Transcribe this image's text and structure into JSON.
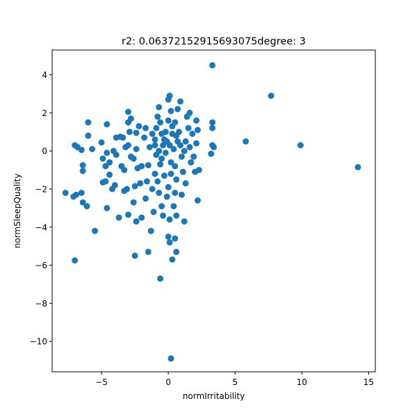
{
  "chart_data": {
    "type": "scatter",
    "title": "r2: 0.06372152915693075degree: 3",
    "xlabel": "normIrritability",
    "ylabel": "normSleepQuality",
    "xlim": [
      -8.7,
      15.5
    ],
    "ylim": [
      -11.6,
      5.3
    ],
    "xticks": [
      -5,
      0,
      5,
      10,
      15
    ],
    "yticks": [
      -10,
      -8,
      -6,
      -4,
      -2,
      0,
      2,
      4
    ],
    "xtick_labels": [
      "−5",
      "0",
      "5",
      "10",
      "15"
    ],
    "ytick_labels": [
      "−10",
      "−8",
      "−6",
      "−4",
      "−2",
      "0",
      "2",
      "4"
    ],
    "grid": false,
    "marker_color": "#1f77b4",
    "points": [
      [
        3.3,
        4.5
      ],
      [
        7.7,
        2.9
      ],
      [
        5.8,
        0.5
      ],
      [
        9.9,
        0.3
      ],
      [
        14.2,
        -0.85
      ],
      [
        0.2,
        -10.9
      ],
      [
        -0.6,
        -6.7
      ],
      [
        -7.0,
        -5.75
      ],
      [
        -5.5,
        -4.2
      ],
      [
        -7.7,
        -2.2
      ],
      [
        -7.1,
        -2.4
      ],
      [
        -6.9,
        -2.3
      ],
      [
        -6.5,
        -2.2
      ],
      [
        -6.4,
        -2.7
      ],
      [
        -6.1,
        -2.9
      ],
      [
        -6.0,
        1.5
      ],
      [
        -6.0,
        0.8
      ],
      [
        -5.7,
        0.1
      ],
      [
        -7.0,
        0.3
      ],
      [
        -6.8,
        0.2
      ],
      [
        -6.5,
        0.05
      ],
      [
        -6.4,
        -0.75
      ],
      [
        -6.4,
        -1.05
      ],
      [
        -5.0,
        0.45
      ],
      [
        -4.6,
        1.4
      ],
      [
        -4.6,
        -0.1
      ],
      [
        -4.4,
        -0.6
      ],
      [
        -4.9,
        -0.4
      ],
      [
        -4.7,
        -0.8
      ],
      [
        -4.9,
        -1.65
      ],
      [
        -4.7,
        -1.6
      ],
      [
        -4.4,
        -1.25
      ],
      [
        -4.2,
        -2.0
      ],
      [
        -4.6,
        -3.0
      ],
      [
        -4.0,
        -1.8
      ],
      [
        -4.1,
        0.0
      ],
      [
        -3.9,
        0.7
      ],
      [
        -3.9,
        -0.2
      ],
      [
        -3.5,
        -0.8
      ],
      [
        -3.3,
        -1.0
      ],
      [
        -3.7,
        -3.5
      ],
      [
        -3.3,
        -2.1
      ],
      [
        -3.1,
        -2.0
      ],
      [
        -3.0,
        -3.35
      ],
      [
        -2.9,
        1.0
      ],
      [
        -3.0,
        1.5
      ],
      [
        -3.0,
        2.05
      ],
      [
        -2.8,
        1.7
      ],
      [
        -3.6,
        0.75
      ],
      [
        -3.4,
        0.7
      ],
      [
        -3.2,
        0.2
      ],
      [
        -3.0,
        0.3
      ],
      [
        -2.8,
        -0.3
      ],
      [
        -2.6,
        -0.4
      ],
      [
        -2.4,
        0.1
      ],
      [
        -2.3,
        -0.9
      ],
      [
        -2.1,
        -1.7
      ],
      [
        -2.0,
        -0.8
      ],
      [
        -2.5,
        -1.85
      ],
      [
        -2.6,
        -2.7
      ],
      [
        -2.4,
        -3.7
      ],
      [
        -2.5,
        -5.5
      ],
      [
        -2.0,
        -3.5
      ],
      [
        -1.7,
        -2.5
      ],
      [
        -1.6,
        -1.6
      ],
      [
        -1.5,
        -0.75
      ],
      [
        -1.4,
        0.2
      ],
      [
        -1.8,
        0.7
      ],
      [
        -1.7,
        1.2
      ],
      [
        -2.2,
        1.3
      ],
      [
        -2.4,
        0.95
      ],
      [
        -1.2,
        -2.0
      ],
      [
        -1.1,
        -3.2
      ],
      [
        -1.3,
        -4.2
      ],
      [
        -1.5,
        -5.3
      ],
      [
        -1.0,
        -1.2
      ],
      [
        -1.0,
        0.6
      ],
      [
        -0.9,
        1.2
      ],
      [
        -0.7,
        2.3
      ],
      [
        -0.8,
        1.8
      ],
      [
        -0.6,
        1.5
      ],
      [
        -0.5,
        0.9
      ],
      [
        -0.4,
        0.3
      ],
      [
        -0.5,
        -0.4
      ],
      [
        -0.6,
        -0.7
      ],
      [
        -0.8,
        -1.6
      ],
      [
        -0.7,
        -2.2
      ],
      [
        -0.5,
        -2.9
      ],
      [
        -0.4,
        -3.4
      ],
      [
        -0.3,
        -1.3
      ],
      [
        -0.2,
        -0.1
      ],
      [
        -0.1,
        0.5
      ],
      [
        0.0,
        1.6
      ],
      [
        0.1,
        2.9
      ],
      [
        0.0,
        2.7
      ],
      [
        0.2,
        2.1
      ],
      [
        0.3,
        1.3
      ],
      [
        0.1,
        0.3
      ],
      [
        0.2,
        -0.6
      ],
      [
        0.0,
        -1.9
      ],
      [
        -0.1,
        -2.4
      ],
      [
        0.1,
        -3.6
      ],
      [
        0.0,
        -4.5
      ],
      [
        0.1,
        -4.8
      ],
      [
        0.3,
        -5.7
      ],
      [
        0.5,
        -4.6
      ],
      [
        0.6,
        -5.3
      ],
      [
        0.6,
        -3.4
      ],
      [
        0.4,
        -2.9
      ],
      [
        0.5,
        -2.2
      ],
      [
        0.6,
        -1.5
      ],
      [
        0.5,
        -0.8
      ],
      [
        0.4,
        0.1
      ],
      [
        0.6,
        0.8
      ],
      [
        0.5,
        1.5
      ],
      [
        0.7,
        2.2
      ],
      [
        0.9,
        2.6
      ],
      [
        0.8,
        1.0
      ],
      [
        0.9,
        0.3
      ],
      [
        1.0,
        -0.3
      ],
      [
        1.1,
        -1.1
      ],
      [
        1.0,
        -2.3
      ],
      [
        1.2,
        -3.7
      ],
      [
        1.3,
        -1.7
      ],
      [
        1.3,
        0.5
      ],
      [
        1.4,
        1.8
      ],
      [
        1.5,
        1.2
      ],
      [
        1.6,
        0.2
      ],
      [
        1.7,
        -0.6
      ],
      [
        1.6,
        2.0
      ],
      [
        1.8,
        0.9
      ],
      [
        1.9,
        -0.3
      ],
      [
        2.0,
        -1.1
      ],
      [
        2.1,
        0.4
      ],
      [
        2.2,
        1.1
      ],
      [
        2.1,
        1.6
      ],
      [
        2.2,
        -2.6
      ],
      [
        2.3,
        -1.0
      ],
      [
        3.3,
        1.5
      ],
      [
        3.3,
        1.2
      ],
      [
        3.3,
        0.3
      ],
      [
        3.4,
        0.2
      ],
      [
        3.2,
        -0.15
      ],
      [
        -1.2,
        0.9
      ],
      [
        -1.0,
        0.3
      ],
      [
        -0.9,
        -0.2
      ],
      [
        -0.7,
        0.0
      ],
      [
        -0.3,
        0.6
      ],
      [
        0.3,
        0.9
      ],
      [
        0.7,
        0.5
      ],
      [
        1.2,
        0.0
      ],
      [
        -0.2,
        1.0
      ],
      [
        0.2,
        -1.2
      ]
    ]
  }
}
